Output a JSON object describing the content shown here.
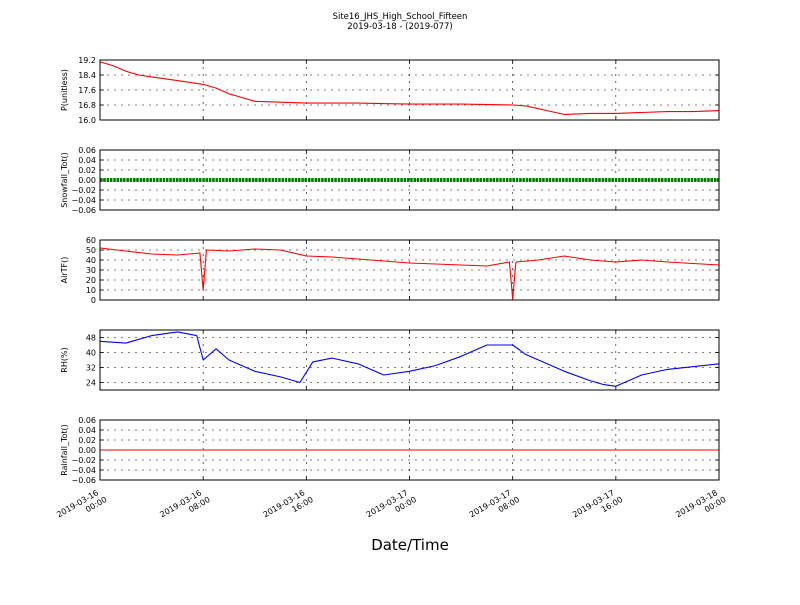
{
  "chart_data": {
    "type": "line",
    "title": "Site16_JHS_High_School_Fifteen",
    "subtitle": "2019-03-18 - (2019-077)",
    "xlabel": "Date/Time",
    "x_range": [
      "2019-03-16 00:00",
      "2019-03-18 00:00"
    ],
    "x_ticks": [
      {
        "value": "2019-03-16 00:00",
        "line1": "2019-03-16",
        "line2": "00:00"
      },
      {
        "value": "2019-03-16 08:00",
        "line1": "2019-03-16",
        "line2": "08:00"
      },
      {
        "value": "2019-03-16 16:00",
        "line1": "2019-03-16",
        "line2": "16:00"
      },
      {
        "value": "2019-03-17 00:00",
        "line1": "2019-03-17",
        "line2": "00:00"
      },
      {
        "value": "2019-03-17 08:00",
        "line1": "2019-03-17",
        "line2": "08:00"
      },
      {
        "value": "2019-03-17 16:00",
        "line1": "2019-03-17",
        "line2": "16:00"
      },
      {
        "value": "2019-03-18 00:00",
        "line1": "2019-03-18",
        "line2": "00:00"
      }
    ],
    "grid": true,
    "panels": [
      {
        "ylabel": "P(unitless)",
        "ylim": [
          16.0,
          19.2
        ],
        "yticks": [
          "16.0",
          "16.8",
          "17.6",
          "18.4",
          "19.2"
        ],
        "color": "#ff0000",
        "style": "line",
        "x": [
          "2019-03-16 00:00",
          "2019-03-16 01:00",
          "2019-03-16 02:00",
          "2019-03-16 03:00",
          "2019-03-16 04:00",
          "2019-03-16 06:00",
          "2019-03-16 08:00",
          "2019-03-16 09:00",
          "2019-03-16 10:00",
          "2019-03-16 11:00",
          "2019-03-16 12:00",
          "2019-03-16 14:00",
          "2019-03-16 16:00",
          "2019-03-16 20:00",
          "2019-03-17 00:00",
          "2019-03-17 04:00",
          "2019-03-17 08:00",
          "2019-03-17 09:00",
          "2019-03-17 10:00",
          "2019-03-17 11:00",
          "2019-03-17 12:00",
          "2019-03-17 14:00",
          "2019-03-17 16:00",
          "2019-03-17 18:00",
          "2019-03-17 20:00",
          "2019-03-17 22:00",
          "2019-03-18 00:00"
        ],
        "y": [
          19.1,
          18.9,
          18.6,
          18.4,
          18.3,
          18.1,
          17.9,
          17.7,
          17.4,
          17.2,
          17.0,
          16.95,
          16.9,
          16.9,
          16.85,
          16.85,
          16.8,
          16.75,
          16.6,
          16.45,
          16.3,
          16.35,
          16.35,
          16.4,
          16.45,
          16.45,
          16.5
        ]
      },
      {
        "ylabel": "Snowfall_Tot()",
        "ylim": [
          -0.06,
          0.06
        ],
        "yticks": [
          "−0.06",
          "−0.04",
          "−0.02",
          "0.00",
          "0.02",
          "0.04",
          "0.06"
        ],
        "color": "#008000",
        "style": "points",
        "x": [
          "2019-03-16 00:00",
          "2019-03-18 00:00"
        ],
        "y": [
          0.0,
          0.0
        ]
      },
      {
        "ylabel": "AirTF()",
        "ylim": [
          0,
          60
        ],
        "yticks": [
          "0",
          "10",
          "20",
          "30",
          "40",
          "50",
          "60"
        ],
        "color": "#ff0000",
        "style": "line",
        "x": [
          "2019-03-16 00:00",
          "2019-03-16 02:00",
          "2019-03-16 04:00",
          "2019-03-16 06:00",
          "2019-03-16 07:45",
          "2019-03-16 08:00",
          "2019-03-16 08:15",
          "2019-03-16 10:00",
          "2019-03-16 12:00",
          "2019-03-16 14:00",
          "2019-03-16 16:00",
          "2019-03-16 18:00",
          "2019-03-16 20:00",
          "2019-03-16 22:00",
          "2019-03-17 00:00",
          "2019-03-17 02:00",
          "2019-03-17 04:00",
          "2019-03-17 06:00",
          "2019-03-17 07:45",
          "2019-03-17 08:00",
          "2019-03-17 08:15",
          "2019-03-17 10:00",
          "2019-03-17 12:00",
          "2019-03-17 14:00",
          "2019-03-17 16:00",
          "2019-03-17 18:00",
          "2019-03-17 20:00",
          "2019-03-18 00:00"
        ],
        "y": [
          52,
          49,
          46,
          45,
          47,
          10,
          50,
          49,
          51,
          50,
          44,
          43,
          41,
          39,
          37,
          36,
          35,
          34,
          38,
          1,
          38,
          40,
          44,
          40,
          38,
          40,
          38,
          35
        ]
      },
      {
        "ylabel": "RH(%)",
        "ylim": [
          20,
          52
        ],
        "yticks": [
          "24",
          "32",
          "40",
          "48"
        ],
        "color": "#0000ff",
        "style": "line",
        "x": [
          "2019-03-16 00:00",
          "2019-03-16 02:00",
          "2019-03-16 04:00",
          "2019-03-16 06:00",
          "2019-03-16 07:30",
          "2019-03-16 08:00",
          "2019-03-16 09:00",
          "2019-03-16 10:00",
          "2019-03-16 12:00",
          "2019-03-16 14:00",
          "2019-03-16 15:30",
          "2019-03-16 16:30",
          "2019-03-16 18:00",
          "2019-03-16 20:00",
          "2019-03-16 22:00",
          "2019-03-17 00:00",
          "2019-03-17 02:00",
          "2019-03-17 04:00",
          "2019-03-17 06:00",
          "2019-03-17 08:00",
          "2019-03-17 09:00",
          "2019-03-17 10:00",
          "2019-03-17 12:00",
          "2019-03-17 14:00",
          "2019-03-17 15:00",
          "2019-03-17 16:00",
          "2019-03-17 18:00",
          "2019-03-17 20:00",
          "2019-03-18 00:00"
        ],
        "y": [
          46,
          45,
          49,
          51,
          49,
          36,
          42,
          36,
          30,
          27,
          24,
          35,
          37,
          34,
          28,
          30,
          33,
          38,
          44,
          44,
          39,
          36,
          30,
          25,
          23,
          22,
          28,
          31,
          34
        ]
      },
      {
        "ylabel": "Rainfall_Tot()",
        "ylim": [
          -0.06,
          0.06
        ],
        "yticks": [
          "−0.06",
          "−0.04",
          "−0.02",
          "0.00",
          "0.02",
          "0.04",
          "0.06"
        ],
        "color": "#ff0000",
        "style": "line",
        "x": [
          "2019-03-16 00:00",
          "2019-03-18 00:00"
        ],
        "y": [
          0.0,
          0.0
        ]
      }
    ]
  }
}
